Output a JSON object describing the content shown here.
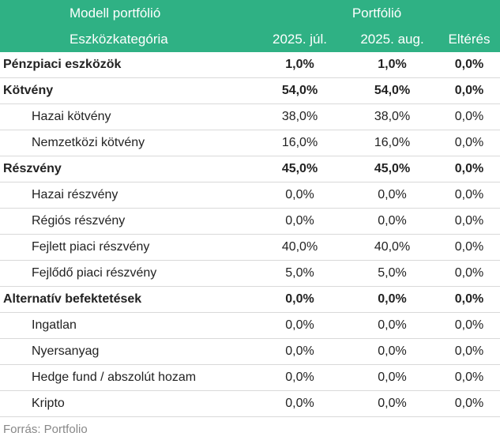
{
  "header": {
    "row1": {
      "model": "Modell portfólió",
      "portfolio": "Portfólió"
    },
    "row2": {
      "category": "Eszközkategória",
      "jul": "2025. júl.",
      "aug": "2025. aug.",
      "diff": "Eltérés"
    }
  },
  "rows": [
    {
      "label": "Pénzpiaci eszközök",
      "jul": "1,0%",
      "aug": "1,0%",
      "diff": "0,0%"
    },
    {
      "label": "Kötvény",
      "jul": "54,0%",
      "aug": "54,0%",
      "diff": "0,0%"
    },
    {
      "label": "Hazai kötvény",
      "jul": "38,0%",
      "aug": "38,0%",
      "diff": "0,0%"
    },
    {
      "label": "Nemzetközi kötvény",
      "jul": "16,0%",
      "aug": "16,0%",
      "diff": "0,0%"
    },
    {
      "label": "Részvény",
      "jul": "45,0%",
      "aug": "45,0%",
      "diff": "0,0%"
    },
    {
      "label": "Hazai részvény",
      "jul": "0,0%",
      "aug": "0,0%",
      "diff": "0,0%"
    },
    {
      "label": "Régiós részvény",
      "jul": "0,0%",
      "aug": "0,0%",
      "diff": "0,0%"
    },
    {
      "label": "Fejlett piaci részvény",
      "jul": "40,0%",
      "aug": "40,0%",
      "diff": "0,0%"
    },
    {
      "label": "Fejlődő piaci részvény",
      "jul": "5,0%",
      "aug": "5,0%",
      "diff": "0,0%"
    },
    {
      "label": "Alternatív befektetések",
      "jul": "0,0%",
      "aug": "0,0%",
      "diff": "0,0%"
    },
    {
      "label": "Ingatlan",
      "jul": "0,0%",
      "aug": "0,0%",
      "diff": "0,0%"
    },
    {
      "label": "Nyersanyag",
      "jul": "0,0%",
      "aug": "0,0%",
      "diff": "0,0%"
    },
    {
      "label": "Hedge fund / abszolút hozam",
      "jul": "0,0%",
      "aug": "0,0%",
      "diff": "0,0%"
    },
    {
      "label": "Kripto",
      "jul": "0,0%",
      "aug": "0,0%",
      "diff": "0,0%"
    }
  ],
  "source": "Forrás: Portfolio",
  "colors": {
    "header_bg": "#2fb184",
    "header_text": "#ffffff",
    "divider": "#d9d9d9"
  }
}
